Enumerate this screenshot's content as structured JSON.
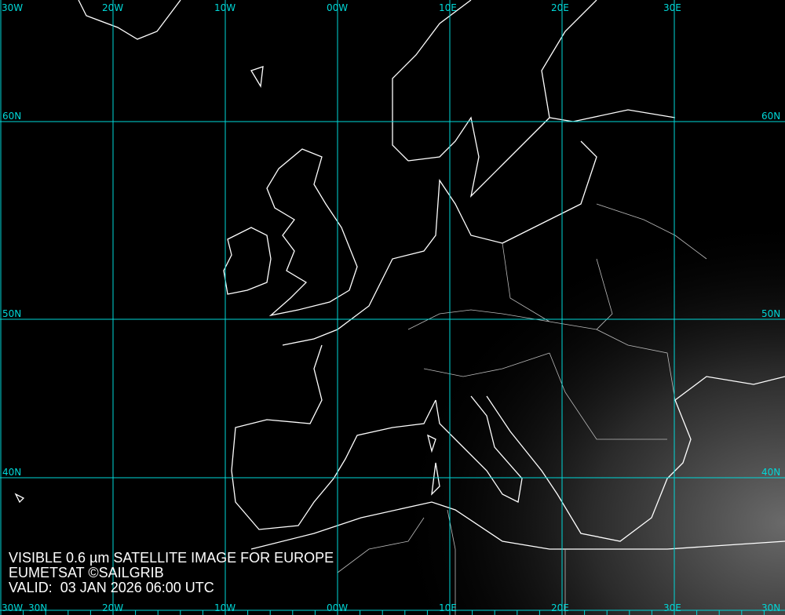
{
  "caption": {
    "line1": "VISIBLE 0.6 µm SATELLITE IMAGE FOR EUROPE",
    "line2": "EUMETSAT ©SAILGRIB",
    "line3": "VALID:  03 JAN 2026 06:00 UTC"
  },
  "grid": {
    "color": "#00d8d8",
    "longitudes": [
      {
        "label": "30W",
        "lon": -30
      },
      {
        "label": "20W",
        "lon": -20
      },
      {
        "label": "10W",
        "lon": -10
      },
      {
        "label": "00W",
        "lon": 0
      },
      {
        "label": "10E",
        "lon": 10
      },
      {
        "label": "20E",
        "lon": 20
      },
      {
        "label": "30E",
        "lon": 30
      }
    ],
    "latitudes": [
      {
        "label": "60N",
        "lat": 60
      },
      {
        "label": "50N",
        "lat": 50
      },
      {
        "label": "40N",
        "lat": 40
      },
      {
        "label": "30N",
        "lat": 30
      }
    ]
  },
  "colors": {
    "background": "#000000",
    "coastline": "#ffffff",
    "borders": "#cfcfcf"
  }
}
